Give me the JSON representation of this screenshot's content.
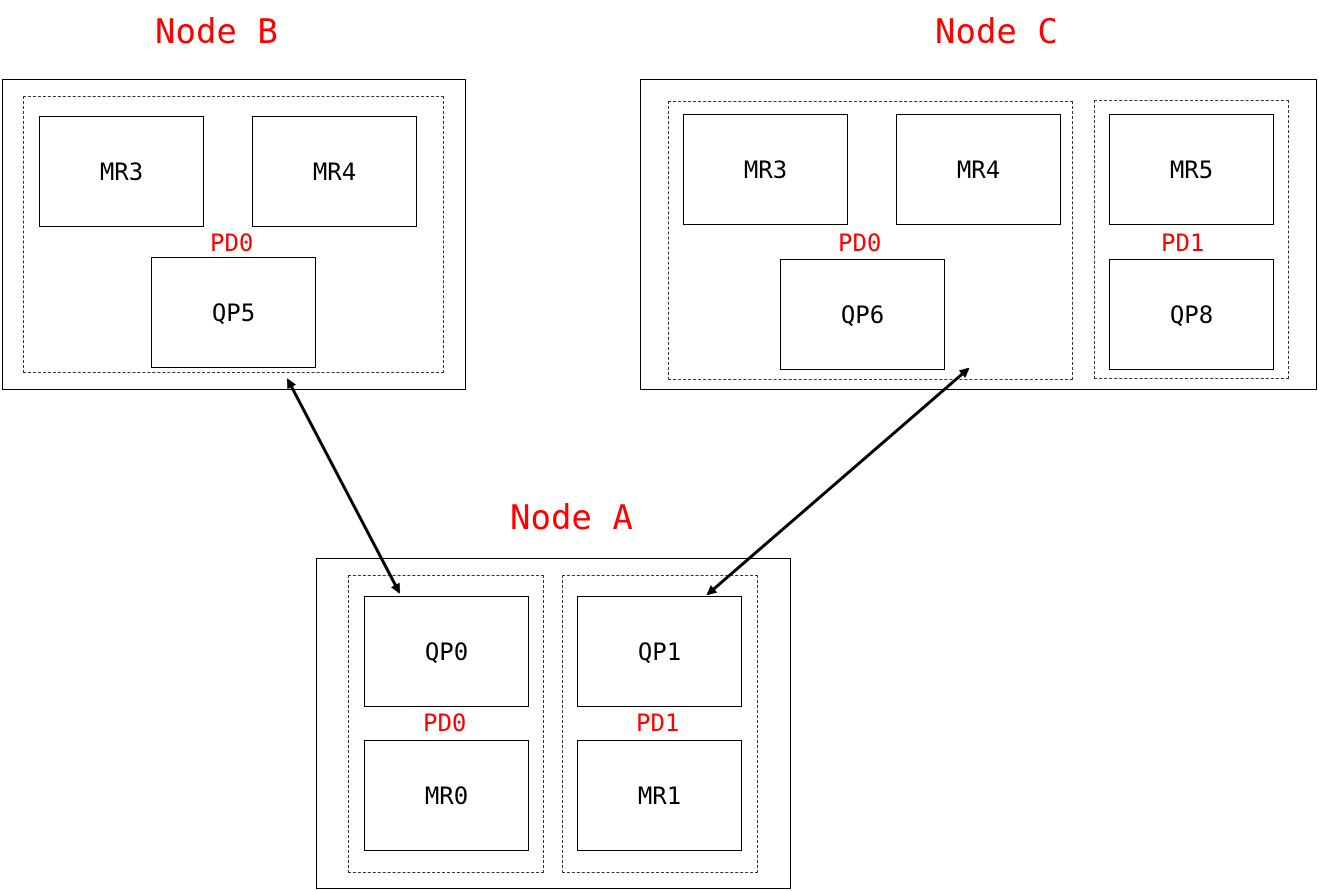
{
  "colors": {
    "label": "#ff0000",
    "stroke": "#000000"
  },
  "node_b": {
    "title": "Node B",
    "pd0": {
      "label": "PD0",
      "mr3": "MR3",
      "mr4": "MR4",
      "qp5": "QP5"
    }
  },
  "node_c": {
    "title": "Node C",
    "pd0": {
      "label": "PD0",
      "mr3": "MR3",
      "mr4": "MR4",
      "qp6": "QP6"
    },
    "pd1": {
      "label": "PD1",
      "mr5": "MR5",
      "qp8": "QP8"
    }
  },
  "node_a": {
    "title": "Node A",
    "pd0": {
      "label": "PD0",
      "qp0": "QP0",
      "mr0": "MR0"
    },
    "pd1": {
      "label": "PD1",
      "qp1": "QP1",
      "mr1": "MR1"
    }
  }
}
